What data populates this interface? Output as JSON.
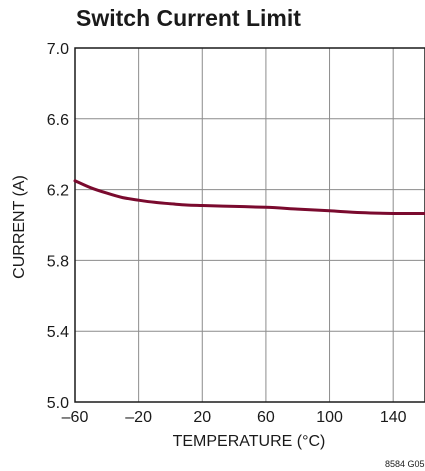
{
  "chart_data": {
    "type": "line",
    "title": "Switch Current Limit",
    "xlabel": "TEMPERATURE (°C)",
    "ylabel": "CURRENT (A)",
    "xlim": [
      -60,
      160
    ],
    "ylim": [
      5.0,
      7.0
    ],
    "x_ticks": [
      -60,
      -20,
      20,
      60,
      100,
      140
    ],
    "x_tick_labels": [
      "–60",
      "–20",
      "20",
      "60",
      "100",
      "140"
    ],
    "y_ticks": [
      5.0,
      5.4,
      5.8,
      6.2,
      6.6,
      7.0
    ],
    "y_tick_labels": [
      "5.0",
      "5.4",
      "5.8",
      "6.2",
      "6.6",
      "7.0"
    ],
    "grid": true,
    "series": [
      {
        "color": "#7a0a2e",
        "x": [
          -60,
          -50,
          -40,
          -30,
          -20,
          -10,
          0,
          10,
          20,
          40,
          60,
          80,
          100,
          120,
          140,
          160
        ],
        "y": [
          6.25,
          6.21,
          6.18,
          6.155,
          6.14,
          6.128,
          6.12,
          6.113,
          6.11,
          6.105,
          6.1,
          6.09,
          6.08,
          6.07,
          6.065,
          6.065
        ]
      }
    ],
    "footnote": "8584 G05"
  }
}
